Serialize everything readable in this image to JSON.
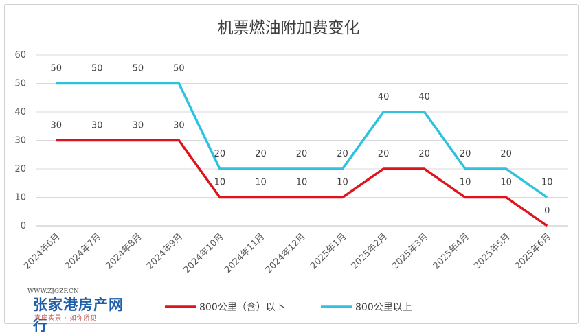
{
  "chart_data": {
    "type": "line",
    "title": "机票燃油附加费变化",
    "xlabel": "",
    "ylabel": "",
    "categories": [
      "2024年6月",
      "2024年7月",
      "2024年8月",
      "2024年9月",
      "2024年10月",
      "2024年11月",
      "2024年12月",
      "2025年1月",
      "2025年2月",
      "2025年3月",
      "2025年4月",
      "2025年5月",
      "2025年6月"
    ],
    "ylim": [
      0,
      60
    ],
    "yticks": [
      "0",
      "10",
      "20",
      "30",
      "40",
      "50",
      "60"
    ],
    "grid": true,
    "legend_position": "bottom",
    "series": [
      {
        "name": "800公里（含）以下",
        "color": "#e0121b",
        "values": [
          30,
          30,
          30,
          30,
          10,
          10,
          10,
          10,
          20,
          20,
          10,
          10,
          0
        ]
      },
      {
        "name": "800公里以上",
        "color": "#2dc3de",
        "values": [
          50,
          50,
          50,
          50,
          20,
          20,
          20,
          20,
          40,
          40,
          20,
          20,
          10
        ]
      }
    ]
  },
  "watermark": {
    "url": "WWW.ZJGZF.CN",
    "main": "张家港房产网 行",
    "sub": "真房实景 · 如你所见"
  }
}
